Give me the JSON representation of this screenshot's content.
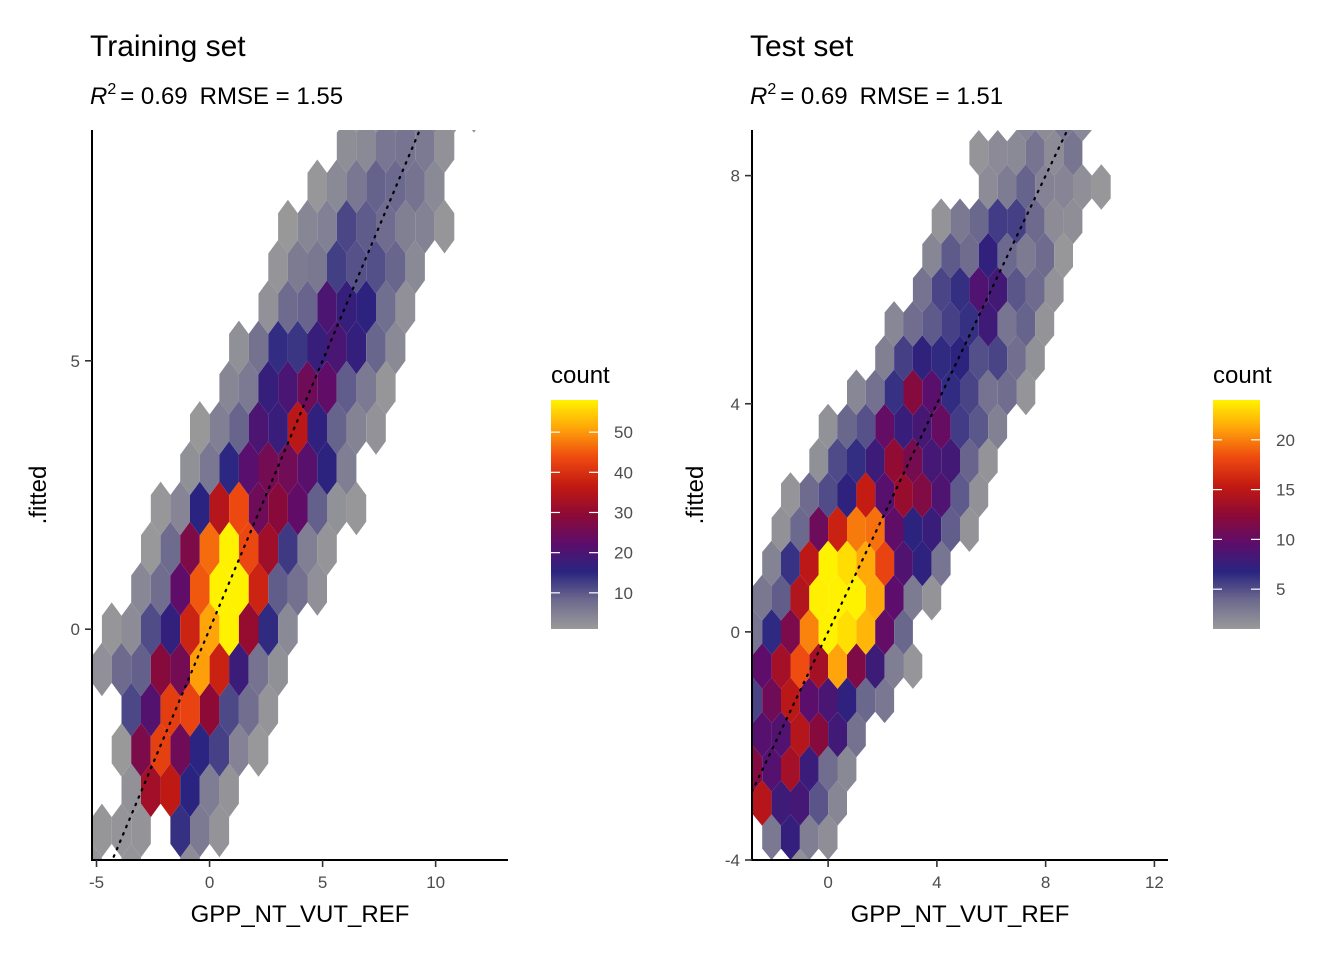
{
  "chart_data": [
    {
      "type": "hexbin",
      "title": "Training set",
      "stats": {
        "r2_symbol": "R",
        "r2_sup": "2",
        "r2_value": "= 0.69",
        "rmse_text": "RMSE = 1.55"
      },
      "xlabel": "GPP_NT_VUT_REF",
      "ylabel": ".fitted",
      "xlim": [
        -5.2,
        13.2
      ],
      "ylim": [
        -4.3,
        9.3
      ],
      "x_ticks": [
        -5,
        0,
        5,
        10
      ],
      "x_tick_labels": [
        "-5",
        "0",
        "5",
        "10"
      ],
      "y_ticks": [
        0,
        5
      ],
      "y_tick_labels": [
        "0",
        "5"
      ],
      "reference_line": {
        "slope": 1,
        "intercept": 0,
        "style": "dotted"
      },
      "legend": {
        "title": "count",
        "min": 1,
        "max": 58,
        "ticks": [
          10,
          20,
          30,
          40,
          50
        ],
        "tick_labels": [
          "10",
          "20",
          "30",
          "40",
          "50"
        ]
      },
      "hex_size": 0.5,
      "diagonal_spread": 1.2,
      "peak": {
        "x": 0.6,
        "y": 0.9,
        "count": 58
      },
      "density_scale": 48
    },
    {
      "type": "hexbin",
      "title": "Test set",
      "stats": {
        "r2_symbol": "R",
        "r2_sup": "2",
        "r2_value": "= 0.69",
        "rmse_text": "RMSE = 1.51"
      },
      "xlabel": "GPP_NT_VUT_REF",
      "ylabel": ".fitted",
      "xlim": [
        -2.8,
        12.5
      ],
      "ylim": [
        -4.0,
        8.8
      ],
      "x_ticks": [
        0,
        4,
        8,
        12
      ],
      "x_tick_labels": [
        "0",
        "4",
        "8",
        "12"
      ],
      "y_ticks": [
        -4,
        0,
        4,
        8
      ],
      "y_tick_labels": [
        "-4",
        "0",
        "4",
        "8"
      ],
      "reference_line": {
        "slope": 1,
        "intercept": 0,
        "style": "dotted"
      },
      "legend": {
        "title": "count",
        "min": 1,
        "max": 24,
        "ticks": [
          5,
          10,
          15,
          20
        ],
        "tick_labels": [
          "5",
          "10",
          "15",
          "20"
        ]
      },
      "hex_size": 0.4,
      "diagonal_spread": 1.2,
      "peak": {
        "x": 0.5,
        "y": 0.6,
        "count": 24
      },
      "density_scale": 18
    }
  ],
  "colors": {
    "palette": [
      "#9a9a9a",
      "#6d6a8e",
      "#2a2480",
      "#5e0d6b",
      "#8e0a35",
      "#c21a12",
      "#ee4a10",
      "#ffa20a",
      "#fff200"
    ],
    "axis": "#000000",
    "reference_line": "#000000"
  }
}
